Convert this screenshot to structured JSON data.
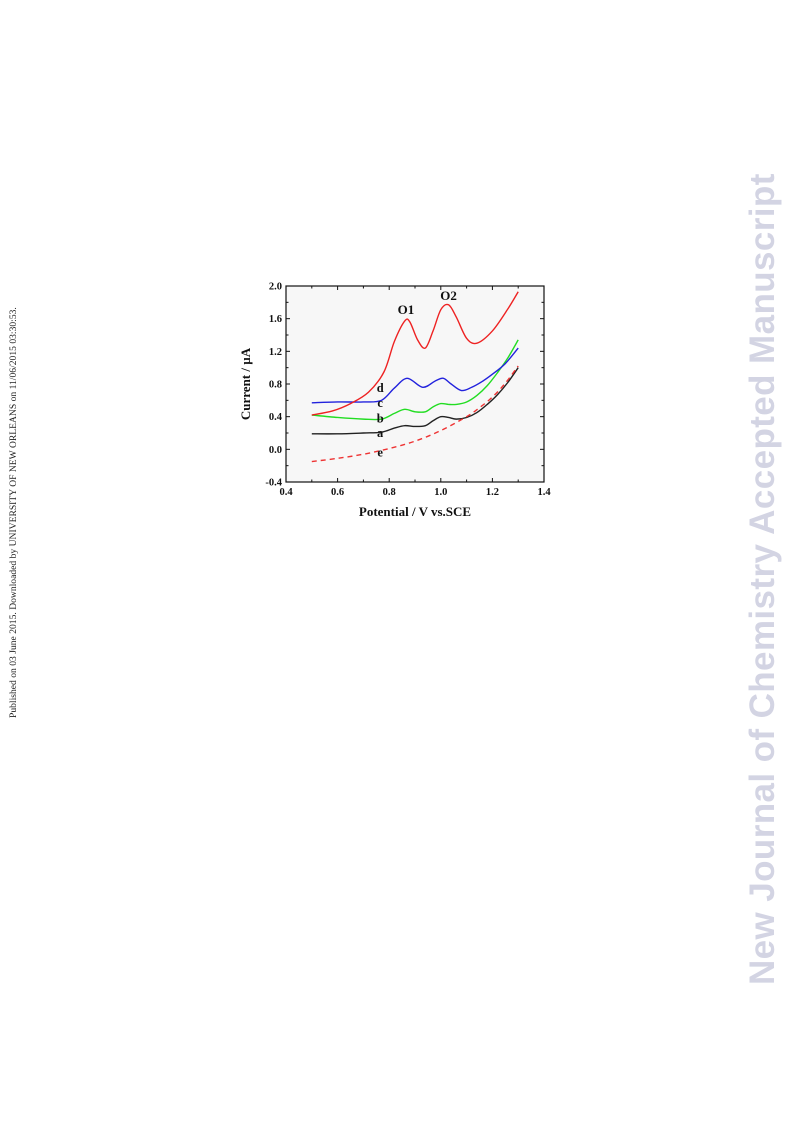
{
  "page": {
    "side_note": "Published on 03 June 2015. Downloaded by UNIVERSITY OF NEW ORLEANS on 11/06/2015 03:30:53.",
    "watermark": "New Journal of Chemistry Accepted Manuscript"
  },
  "chart_data": {
    "type": "line",
    "title": "",
    "xlabel": "Potential / V vs.SCE",
    "ylabel": "Current / µA",
    "xlim": [
      0.4,
      1.4
    ],
    "ylim": [
      -0.4,
      2.0
    ],
    "xticks": [
      "0.4",
      "0.6",
      "0.8",
      "1.0",
      "1.2",
      "1.4"
    ],
    "yticks": [
      "-0.4",
      "0.0",
      "0.4",
      "0.8",
      "1.2",
      "1.6",
      "2.0"
    ],
    "grid": false,
    "annotations": [
      {
        "text": "O1",
        "x": 0.865,
        "y": 1.66
      },
      {
        "text": "O2",
        "x": 1.03,
        "y": 1.83
      }
    ],
    "series": [
      {
        "name": "a",
        "color": "#222222",
        "dash": false,
        "label_at": [
          0.765,
          0.2
        ],
        "x": [
          0.5,
          0.6,
          0.7,
          0.77,
          0.82,
          0.86,
          0.9,
          0.94,
          0.97,
          1.0,
          1.03,
          1.06,
          1.1,
          1.14,
          1.18,
          1.22,
          1.26,
          1.3
        ],
        "y": [
          0.19,
          0.19,
          0.2,
          0.21,
          0.26,
          0.29,
          0.28,
          0.29,
          0.35,
          0.4,
          0.39,
          0.37,
          0.39,
          0.45,
          0.55,
          0.67,
          0.82,
          1.0
        ]
      },
      {
        "name": "b",
        "color": "#22dd22",
        "dash": false,
        "label_at": [
          0.765,
          0.38
        ],
        "x": [
          0.5,
          0.6,
          0.7,
          0.77,
          0.82,
          0.86,
          0.9,
          0.94,
          0.97,
          1.0,
          1.03,
          1.06,
          1.1,
          1.14,
          1.18,
          1.22,
          1.26,
          1.3
        ],
        "y": [
          0.42,
          0.39,
          0.37,
          0.37,
          0.44,
          0.49,
          0.46,
          0.46,
          0.52,
          0.56,
          0.55,
          0.55,
          0.58,
          0.66,
          0.78,
          0.94,
          1.12,
          1.34
        ]
      },
      {
        "name": "c",
        "color": "#2222dd",
        "dash": false,
        "label_at": [
          0.765,
          0.57
        ],
        "x": [
          0.5,
          0.6,
          0.7,
          0.77,
          0.82,
          0.87,
          0.93,
          0.98,
          1.01,
          1.04,
          1.08,
          1.12,
          1.16,
          1.2,
          1.25,
          1.3
        ],
        "y": [
          0.57,
          0.58,
          0.58,
          0.6,
          0.75,
          0.87,
          0.76,
          0.84,
          0.87,
          0.8,
          0.72,
          0.76,
          0.83,
          0.92,
          1.05,
          1.24
        ]
      },
      {
        "name": "d",
        "color": "#ee2222",
        "dash": false,
        "label_at": [
          0.765,
          0.75
        ],
        "x": [
          0.5,
          0.58,
          0.65,
          0.72,
          0.78,
          0.82,
          0.86,
          0.88,
          0.91,
          0.94,
          0.97,
          1.0,
          1.03,
          1.06,
          1.1,
          1.14,
          1.2,
          1.26,
          1.3
        ],
        "y": [
          0.42,
          0.47,
          0.56,
          0.7,
          0.95,
          1.32,
          1.57,
          1.56,
          1.34,
          1.24,
          1.45,
          1.71,
          1.77,
          1.62,
          1.36,
          1.3,
          1.45,
          1.72,
          1.93
        ]
      },
      {
        "name": "e",
        "color": "#ee3333",
        "dash": true,
        "label_at": [
          0.765,
          -0.04
        ],
        "x": [
          0.5,
          0.6,
          0.7,
          0.8,
          0.9,
          1.0,
          1.1,
          1.15,
          1.2,
          1.25,
          1.3
        ],
        "y": [
          -0.15,
          -0.11,
          -0.06,
          0.01,
          0.1,
          0.23,
          0.4,
          0.51,
          0.64,
          0.81,
          1.02
        ]
      }
    ]
  }
}
